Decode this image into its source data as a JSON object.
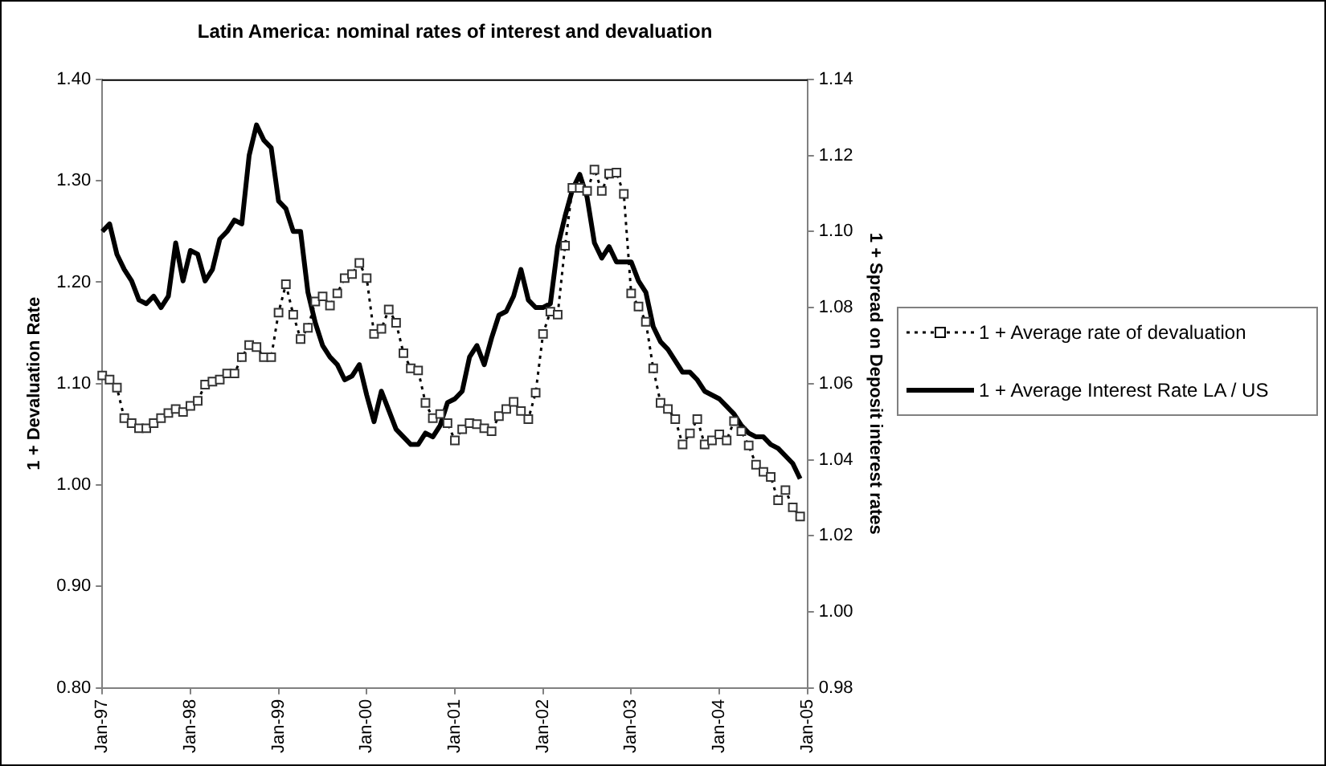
{
  "chart_data": {
    "type": "line",
    "title": "Latin America: nominal rates of interest and devaluation",
    "ylabel": "1 + Devaluation Rate",
    "y2label": "1 + Spread on Deposit interest rates",
    "categories": [
      "Jan-97",
      null,
      null,
      null,
      null,
      null,
      null,
      null,
      null,
      null,
      null,
      null,
      "Jan-98",
      null,
      null,
      null,
      null,
      null,
      null,
      null,
      null,
      null,
      null,
      null,
      "Jan-99",
      null,
      null,
      null,
      null,
      null,
      null,
      null,
      null,
      null,
      null,
      null,
      "Jan-00",
      null,
      null,
      null,
      null,
      null,
      null,
      null,
      null,
      null,
      null,
      null,
      "Jan-01",
      null,
      null,
      null,
      null,
      null,
      null,
      null,
      null,
      null,
      null,
      null,
      "Jan-02",
      null,
      null,
      null,
      null,
      null,
      null,
      null,
      null,
      null,
      null,
      null,
      "Jan-03",
      null,
      null,
      null,
      null,
      null,
      null,
      null,
      null,
      null,
      null,
      null,
      "Jan-04",
      null,
      null,
      null,
      null,
      null,
      null,
      null,
      null,
      null,
      null,
      null,
      "Jan-05"
    ],
    "series": [
      {
        "name": "1 + Average rate of devaluation",
        "color": "#000000",
        "axis": "y",
        "marker": "square",
        "line_style": "dotted",
        "values": [
          1.108,
          1.104,
          1.096,
          1.066,
          1.061,
          1.056,
          1.056,
          1.061,
          1.066,
          1.071,
          1.075,
          1.072,
          1.078,
          1.083,
          1.099,
          1.102,
          1.104,
          1.11,
          1.11,
          1.126,
          1.138,
          1.136,
          1.126,
          1.126,
          1.17,
          1.198,
          1.168,
          1.144,
          1.155,
          1.181,
          1.186,
          1.177,
          1.189,
          1.204,
          1.208,
          1.219,
          1.204,
          1.149,
          1.154,
          1.173,
          1.16,
          1.13,
          1.115,
          1.113,
          1.081,
          1.066,
          1.07,
          1.061,
          1.044,
          1.055,
          1.061,
          1.06,
          1.056,
          1.053,
          1.068,
          1.075,
          1.082,
          1.073,
          1.065,
          1.091,
          1.149,
          1.171,
          1.168,
          1.236,
          1.293,
          1.293,
          1.29,
          1.311,
          1.29,
          1.307,
          1.308,
          1.287,
          1.189,
          1.176,
          1.161,
          1.115,
          1.081,
          1.075,
          1.065,
          1.04,
          1.051,
          1.065,
          1.04,
          1.044,
          1.05,
          1.044,
          1.063,
          1.053,
          1.039,
          1.02,
          1.013,
          1.008,
          0.985,
          0.995,
          0.978,
          0.969,
          null
        ]
      },
      {
        "name": "1 + Average Interest Rate LA / US",
        "color": "#000000",
        "axis": "y2",
        "marker": "none",
        "line_style": "solid",
        "values": [
          1.1,
          1.102,
          1.094,
          1.09,
          1.087,
          1.082,
          1.081,
          1.083,
          1.08,
          1.083,
          1.097,
          1.087,
          1.095,
          1.094,
          1.087,
          1.09,
          1.098,
          1.1,
          1.103,
          1.102,
          1.12,
          1.128,
          1.124,
          1.122,
          1.108,
          1.106,
          1.1,
          1.1,
          1.084,
          1.076,
          1.07,
          1.067,
          1.065,
          1.061,
          1.062,
          1.065,
          1.057,
          1.05,
          1.058,
          1.053,
          1.048,
          1.046,
          1.044,
          1.044,
          1.047,
          1.046,
          1.049,
          1.055,
          1.056,
          1.058,
          1.067,
          1.07,
          1.065,
          1.072,
          1.078,
          1.079,
          1.083,
          1.09,
          1.082,
          1.08,
          1.08,
          1.081,
          1.096,
          1.104,
          1.111,
          1.115,
          1.109,
          1.097,
          1.093,
          1.096,
          1.092,
          1.092,
          1.092,
          1.087,
          1.084,
          1.075,
          1.071,
          1.069,
          1.066,
          1.063,
          1.063,
          1.061,
          1.058,
          1.057,
          1.056,
          1.054,
          1.052,
          1.049,
          1.047,
          1.046,
          1.046,
          1.044,
          1.043,
          1.041,
          1.039,
          1.035,
          null
        ]
      }
    ],
    "ylim": [
      0.8,
      1.4
    ],
    "yticks": [
      {
        "value": 0.8,
        "label": "0.80"
      },
      {
        "value": 0.9,
        "label": "0.90"
      },
      {
        "value": 1.0,
        "label": "1.00"
      },
      {
        "value": 1.1,
        "label": "1.10"
      },
      {
        "value": 1.2,
        "label": "1.20"
      },
      {
        "value": 1.3,
        "label": "1.30"
      },
      {
        "value": 1.4,
        "label": "1.40"
      }
    ],
    "y2lim": [
      0.98,
      1.14
    ],
    "y2ticks": [
      0.98,
      {
        "value": 1.0,
        "label": "1.00"
      },
      1.02,
      1.04,
      1.06,
      1.08,
      {
        "value": 1.1,
        "label": "1.10"
      },
      1.12,
      1.14
    ],
    "legend": "right"
  }
}
